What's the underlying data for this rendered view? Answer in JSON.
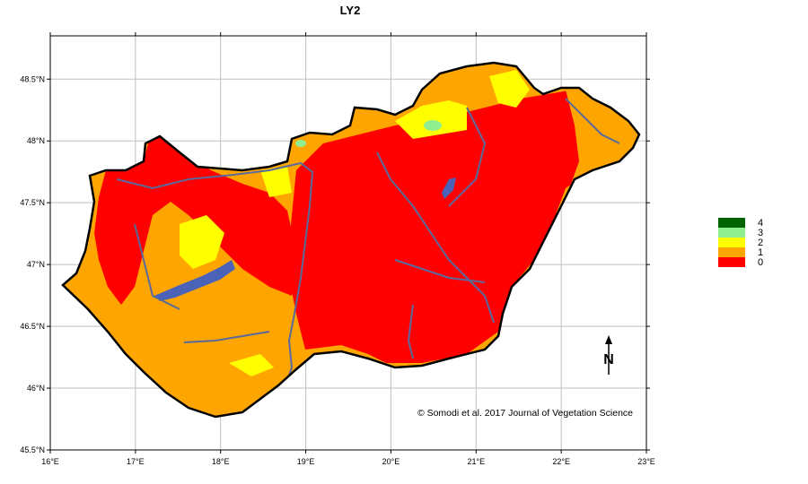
{
  "title": "LY2",
  "axes": {
    "x_ticks": [
      "16°E",
      "17°E",
      "18°E",
      "19°E",
      "20°E",
      "21°E",
      "22°E",
      "23°E"
    ],
    "x_values": [
      16,
      17,
      18,
      19,
      20,
      21,
      22,
      23
    ],
    "y_ticks": [
      "45.5°N",
      "46°N",
      "46.5°N",
      "47°N",
      "47.5°N",
      "48°N",
      "48.5°N"
    ],
    "y_values": [
      45.5,
      46,
      46.5,
      47,
      47.5,
      48,
      48.5
    ],
    "x_range": [
      16,
      23
    ],
    "y_range": [
      45.5,
      48.85
    ],
    "grid": true
  },
  "legend": {
    "placement": "right",
    "items": [
      {
        "label": "4",
        "color": "#006400"
      },
      {
        "label": "3",
        "color": "#90ee90"
      },
      {
        "label": "2",
        "color": "#ffff00"
      },
      {
        "label": "1",
        "color": "#ffa500"
      },
      {
        "label": "0",
        "color": "#ff0000"
      }
    ]
  },
  "north_arrow": "N",
  "credit": "© Somodi et al. 2017 Journal of Vegetation Science",
  "colors": {
    "class0": "#ff0000",
    "class1": "#ffa500",
    "class2": "#ffff00",
    "class3": "#90ee90",
    "class4": "#006400",
    "water": "#4a62b8",
    "rivers": "#5a6a9a",
    "border": "#000000",
    "grid": "#bfbfbf"
  }
}
